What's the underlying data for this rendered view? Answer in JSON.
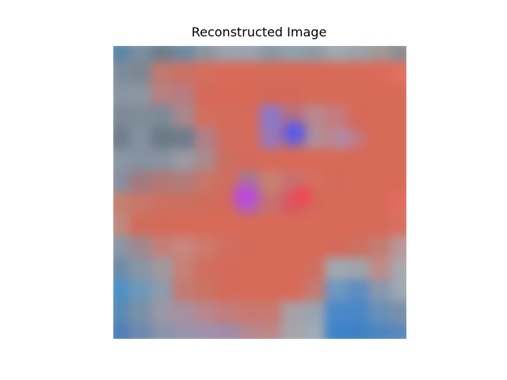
{
  "figure": {
    "title": "Reconstructed Image"
  },
  "image": {
    "grid": 14,
    "rows": [
      [
        "#5b86a8",
        "#7a8e9e",
        "#6e7e8c",
        "#6d8ba2",
        "#8c96a0",
        "#9aa4ae",
        "#9aa4ae",
        "#8a98a4",
        "#90a0aa",
        "#8e9ca6",
        "#a0a8b0",
        "#9aa2aa",
        "#a09898",
        "#8c8c94"
      ],
      [
        "#7e8c9a",
        "#7c8794",
        "#c07a70",
        "#cc7064",
        "#d66e5e",
        "#d96a58",
        "#d86a58",
        "#d86a58",
        "#d86a58",
        "#d86a58",
        "#d76a58",
        "#d86a58",
        "#dc6a58",
        "#e07060"
      ],
      [
        "#8896a2",
        "#8c96a2",
        "#b88080",
        "#b87c80",
        "#d46a58",
        "#d86858",
        "#d86858",
        "#d46858",
        "#d46858",
        "#d86a58",
        "#d86a58",
        "#d86a58",
        "#d86a58",
        "#d86a58"
      ],
      [
        "#7c8a98",
        "#808c98",
        "#7c8a98",
        "#a8888c",
        "#d46e5e",
        "#d46c5c",
        "#d66a5a",
        "#8c78c8",
        "#b87080",
        "#b88890",
        "#c47c80",
        "#d46a5a",
        "#d86a58",
        "#d86a58"
      ],
      [
        "#707e8c",
        "#8290a0",
        "#6c7a88",
        "#6e7c8a",
        "#b08088",
        "#d26c5c",
        "#d46c5c",
        "#9a78b8",
        "#c47070",
        "#b09098",
        "#c08488",
        "#d66a5a",
        "#d86a58",
        "#d86a58"
      ],
      [
        "#8a96a2",
        "#8692a0",
        "#8892a0",
        "#9a9aa4",
        "#aa8a8c",
        "#cc6e60",
        "#d46a5a",
        "#d86a58",
        "#d86a58",
        "#d86a58",
        "#d86a58",
        "#d86a58",
        "#d86a58",
        "#d86a58"
      ],
      [
        "#8890a0",
        "#a07a80",
        "#b07876",
        "#b07c78",
        "#c87668",
        "#d06e60",
        "#a87890",
        "#c88070",
        "#c87070",
        "#d47060",
        "#d46a5a",
        "#d86a58",
        "#d86a58",
        "#d86a58"
      ],
      [
        "#c48070",
        "#c8786a",
        "#cc7060",
        "#cc6e60",
        "#d06c5c",
        "#d46a5a",
        "#b468a0",
        "#c87070",
        "#d85a60",
        "#d46a5a",
        "#d86a58",
        "#d86a58",
        "#d86a58",
        "#e06c60"
      ],
      [
        "#c08a80",
        "#d06c5c",
        "#d46a5a",
        "#d86a58",
        "#d86a58",
        "#d86a58",
        "#d86a58",
        "#d86a58",
        "#d86a58",
        "#d86a58",
        "#d86a58",
        "#d86a58",
        "#d86a58",
        "#d87060"
      ],
      [
        "#8898a6",
        "#a08890",
        "#c48078",
        "#c8867c",
        "#cc7a6c",
        "#d06e60",
        "#d46a5a",
        "#d86a58",
        "#d86a58",
        "#d86a58",
        "#d46a5a",
        "#cc7060",
        "#c47c72",
        "#b89898"
      ],
      [
        "#6e8ca8",
        "#8896a4",
        "#a09aa0",
        "#c88078",
        "#d06e60",
        "#d46a5a",
        "#d86a58",
        "#d86a58",
        "#d86a58",
        "#d06e60",
        "#a0a8b0",
        "#a0a4ac",
        "#c08c88",
        "#a8a8b0"
      ],
      [
        "#4e90c8",
        "#6e98b8",
        "#8e9cac",
        "#c47a70",
        "#cc7262",
        "#d46a5a",
        "#d86a58",
        "#d86a58",
        "#d86a58",
        "#c47a72",
        "#6e98c0",
        "#5e8cc0",
        "#8898b0",
        "#a0a8b4"
      ],
      [
        "#5a8ab4",
        "#7a90a8",
        "#9a98a8",
        "#a890a0",
        "#b8868c",
        "#c47c7c",
        "#c87870",
        "#c87a70",
        "#a8a0a8",
        "#9aa4b0",
        "#4c88c8",
        "#4a86c8",
        "#6890b8",
        "#7890ac"
      ],
      [
        "#4e7eb8",
        "#6c88b0",
        "#8894aa",
        "#9894ac",
        "#a090ac",
        "#a08ca8",
        "#b48890",
        "#bc8888",
        "#a8a4ac",
        "#a0acb8",
        "#3e82c8",
        "#3e80c6",
        "#4c86c0",
        "#5a88b8"
      ]
    ]
  }
}
